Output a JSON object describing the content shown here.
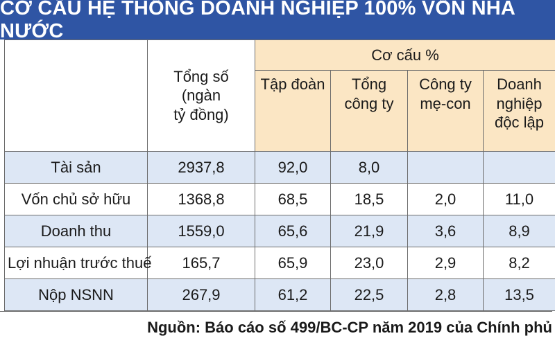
{
  "title": "CƠ CẤU HỆ THỐNG DOANH NGHIỆP 100% VỐN NHÀ NƯỚC",
  "header": {
    "total_lines": [
      "Tổng số",
      "(ngàn",
      "tỷ đồng)"
    ],
    "group_label": "Cơ cấu %",
    "sub_columns": [
      {
        "lines": [
          "Tập đoàn"
        ]
      },
      {
        "lines": [
          "Tổng",
          "công ty"
        ]
      },
      {
        "lines": [
          "Công ty",
          "mẹ-con"
        ]
      },
      {
        "lines": [
          "Doanh",
          "nghiệp",
          "độc lập"
        ]
      }
    ]
  },
  "rows": [
    {
      "label": "Tài sản",
      "total": "2937,8",
      "values": [
        "92,0",
        "8,0",
        "",
        ""
      ]
    },
    {
      "label": "Vốn chủ sở hữu",
      "total": "1368,8",
      "values": [
        "68,5",
        "18,5",
        "2,0",
        "11,0"
      ]
    },
    {
      "label": "Doanh thu",
      "total": "1559,0",
      "values": [
        "65,6",
        "21,9",
        "3,6",
        "8,9"
      ]
    },
    {
      "label": "Lợi nhuận trước thuế",
      "total": "165,7",
      "values": [
        "65,9",
        "23,0",
        "2,9",
        "8,2"
      ]
    },
    {
      "label": "Nộp NSNN",
      "total": "267,9",
      "values": [
        "61,2",
        "22,5",
        "2,8",
        "13,5"
      ]
    }
  ],
  "source": "Nguồn: Báo cáo số 499/BC-CP năm 2019 của Chính phủ",
  "colors": {
    "title_bg": "#2f55a4",
    "header_bg": "#fbe6c4",
    "row_alt_bg": "#dde7f5"
  }
}
